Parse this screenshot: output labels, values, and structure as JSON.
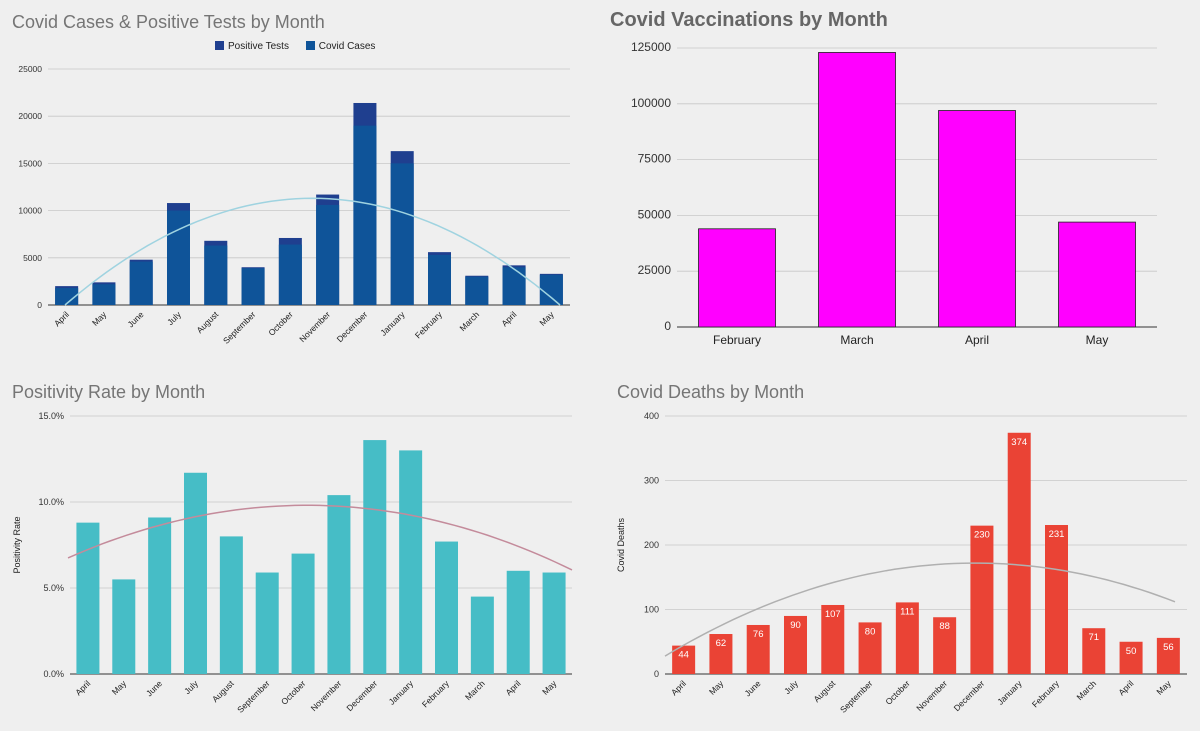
{
  "chart_data": [
    {
      "id": "cases",
      "type": "bar",
      "title": "Covid Cases & Positive Tests by Month",
      "categories": [
        "April",
        "May",
        "June",
        "July",
        "August",
        "September",
        "October",
        "November",
        "December",
        "January",
        "February",
        "March",
        "April",
        "May"
      ],
      "series": [
        {
          "name": "Positive Tests",
          "color": "#1f3f8f",
          "values": [
            2000,
            2400,
            4800,
            10800,
            6800,
            4000,
            7100,
            11700,
            21400,
            16300,
            5600,
            3100,
            4200,
            3300
          ]
        },
        {
          "name": "Covid Cases",
          "color": "#0f5499",
          "values": [
            1800,
            2200,
            4600,
            10000,
            6300,
            3900,
            6400,
            10600,
            19000,
            15000,
            5300,
            3000,
            4000,
            3200
          ]
        }
      ],
      "trendline": {
        "color": "#9fd3e0",
        "peak": 11300
      },
      "yticks": [
        0,
        5000,
        10000,
        15000,
        20000,
        25000
      ],
      "ylim": [
        0,
        25000
      ],
      "xlabel": "",
      "ylabel": ""
    },
    {
      "id": "vacc",
      "type": "bar",
      "title": "Covid Vaccinations by Month",
      "categories": [
        "February",
        "March",
        "April",
        "May"
      ],
      "values": [
        44000,
        123000,
        97000,
        47000
      ],
      "color": "#ff00ff",
      "yticks": [
        0,
        25000,
        50000,
        75000,
        100000,
        125000
      ],
      "ylim": [
        0,
        125000
      ],
      "xlabel": "",
      "ylabel": ""
    },
    {
      "id": "pos",
      "type": "bar",
      "title": "Positivity Rate by Month",
      "categories": [
        "April",
        "May",
        "June",
        "July",
        "August",
        "September",
        "October",
        "November",
        "December",
        "January",
        "February",
        "March",
        "April",
        "May"
      ],
      "values": [
        8.8,
        5.5,
        9.1,
        11.7,
        8.0,
        5.9,
        7.0,
        10.4,
        13.6,
        13.0,
        7.7,
        4.5,
        6.0,
        5.9
      ],
      "color": "#46bdc6",
      "trendline": {
        "color": "#c48b9b",
        "peak": 9.8
      },
      "yticks": [
        0,
        5,
        10,
        15
      ],
      "ytick_labels": [
        "0.0%",
        "5.0%",
        "10.0%",
        "15.0%"
      ],
      "ylim": [
        0,
        15
      ],
      "xlabel": "",
      "ylabel": "Positivity Rate"
    },
    {
      "id": "deaths",
      "type": "bar",
      "title": "Covid Deaths by Month",
      "categories": [
        "April",
        "May",
        "June",
        "July",
        "August",
        "September",
        "October",
        "November",
        "December",
        "January",
        "February",
        "March",
        "April",
        "May"
      ],
      "values": [
        44,
        62,
        76,
        90,
        107,
        80,
        111,
        88,
        230,
        374,
        231,
        71,
        50,
        56
      ],
      "color": "#ea4335",
      "trendline": {
        "color": "#b0b0b0",
        "peak": 172
      },
      "yticks": [
        0,
        100,
        200,
        300,
        400
      ],
      "ylim": [
        0,
        400
      ],
      "xlabel": "",
      "ylabel": "Covid Deaths"
    }
  ]
}
